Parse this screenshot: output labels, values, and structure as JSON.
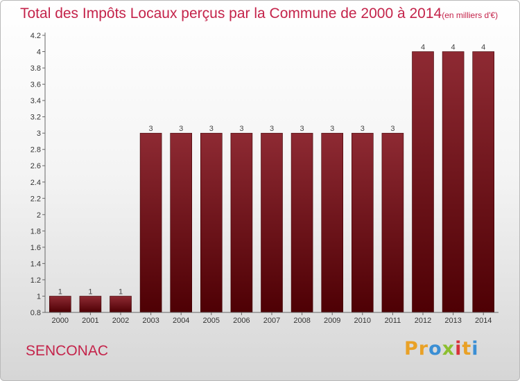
{
  "title": "Total des Impôts Locaux perçus par la Commune de 2000 à 2014",
  "title_unit": "(en milliers d'€)",
  "commune": "SENCONAC",
  "logo": {
    "text": "Proxiti",
    "parts": [
      "P",
      "r",
      "o",
      "x",
      "i",
      "t",
      "i"
    ]
  },
  "colors": {
    "bar": "#7a1a22",
    "title": "#c4234a",
    "logo": [
      "#e9a126",
      "#3b8fd4",
      "#8cbf2f",
      "#d8323a"
    ]
  },
  "chart_data": {
    "type": "bar",
    "categories": [
      "2000",
      "2001",
      "2002",
      "2003",
      "2004",
      "2005",
      "2006",
      "2007",
      "2008",
      "2009",
      "2010",
      "2011",
      "2012",
      "2013",
      "2014"
    ],
    "values": [
      1,
      1,
      1,
      3,
      3,
      3,
      3,
      3,
      3,
      3,
      3,
      3,
      4,
      4,
      4
    ],
    "data_labels": [
      "1",
      "1",
      "1",
      "3",
      "3",
      "3",
      "3",
      "3",
      "3",
      "3",
      "3",
      "3",
      "4",
      "4",
      "4"
    ],
    "ylim": [
      0.8,
      4.2
    ],
    "yticks": [
      0.8,
      1,
      1.2,
      1.4,
      1.6,
      1.8,
      2,
      2.2,
      2.4,
      2.6,
      2.8,
      3,
      3.2,
      3.4,
      3.6,
      3.8,
      4,
      4.2
    ],
    "ytick_labels": [
      "0.8",
      "1",
      "1.2",
      "1.4",
      "1.6",
      "1.8",
      "2",
      "2.2",
      "2.4",
      "2.6",
      "2.8",
      "3",
      "3.2",
      "3.4",
      "3.6",
      "3.8",
      "4",
      "4.2"
    ],
    "grid": false,
    "legend": "none"
  }
}
